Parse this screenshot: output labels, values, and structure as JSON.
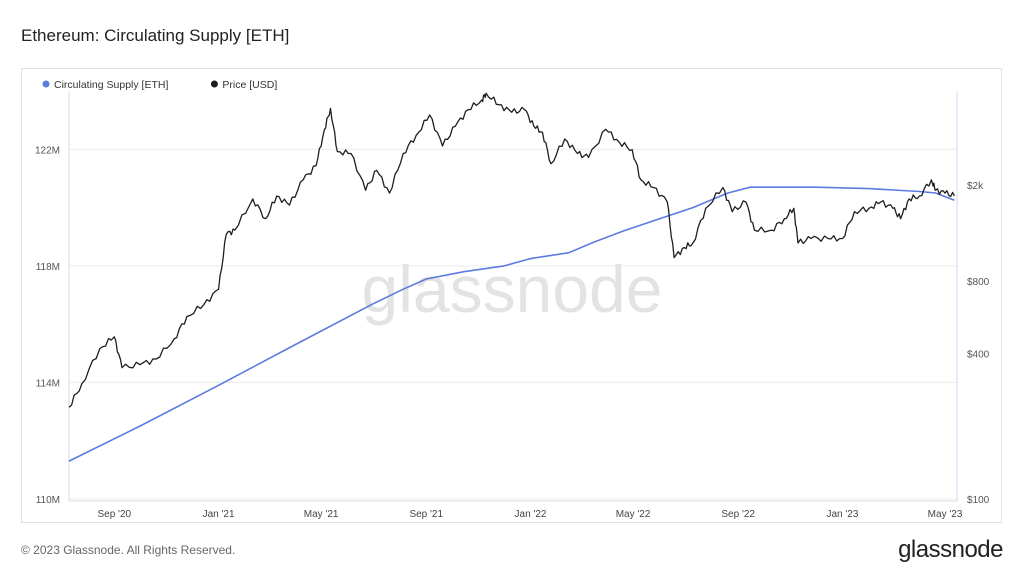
{
  "title": "Ethereum: Circulating Supply [ETH]",
  "footer": "© 2023 Glassnode. All Rights Reserved.",
  "brand": "glassnode",
  "watermark": "glassnode",
  "colors": {
    "supply": "#5b7be0",
    "price": "#1f1f1f",
    "grid": "#ececec",
    "axis": "#cfd8f0"
  },
  "chart_data": {
    "type": "line",
    "x_range": [
      "2020-07-10",
      "2023-05-15"
    ],
    "x_ticks": [
      {
        "date": "2020-09-01",
        "label": "Sep '20"
      },
      {
        "date": "2021-01-01",
        "label": "Jan '21"
      },
      {
        "date": "2021-05-01",
        "label": "May '21"
      },
      {
        "date": "2021-09-01",
        "label": "Sep '21"
      },
      {
        "date": "2022-01-01",
        "label": "Jan '22"
      },
      {
        "date": "2022-05-01",
        "label": "May '22"
      },
      {
        "date": "2022-09-01",
        "label": "Sep '22"
      },
      {
        "date": "2023-01-01",
        "label": "Jan '23"
      },
      {
        "date": "2023-05-01",
        "label": "May '23"
      }
    ],
    "left_axis": {
      "scale": "linear",
      "range": [
        110000000,
        124000000
      ],
      "ticks": [
        {
          "value": 110000000,
          "label": "110M"
        },
        {
          "value": 114000000,
          "label": "114M"
        },
        {
          "value": 118000000,
          "label": "118M"
        },
        {
          "value": 122000000,
          "label": "122M"
        }
      ]
    },
    "right_axis": {
      "scale": "log",
      "range": [
        100,
        4900
      ],
      "ticks": [
        {
          "value": 100,
          "label": "$100"
        },
        {
          "value": 400,
          "label": "$400"
        },
        {
          "value": 800,
          "label": "$800"
        },
        {
          "value": 2000,
          "label": "$2k"
        }
      ]
    },
    "legend_position": "top-left",
    "grid": "horizontal",
    "series": [
      {
        "name": "Circulating Supply [ETH]",
        "axis": "left",
        "color": "#5b7be0",
        "points": [
          [
            "2020-07-10",
            111300000
          ],
          [
            "2020-10-01",
            112500000
          ],
          [
            "2021-01-01",
            113900000
          ],
          [
            "2021-04-01",
            115300000
          ],
          [
            "2021-07-01",
            116700000
          ],
          [
            "2021-08-05",
            117200000
          ],
          [
            "2021-09-01",
            117550000
          ],
          [
            "2021-10-15",
            117800000
          ],
          [
            "2021-12-01",
            118000000
          ],
          [
            "2022-01-01",
            118250000
          ],
          [
            "2022-02-15",
            118450000
          ],
          [
            "2022-03-15",
            118800000
          ],
          [
            "2022-04-20",
            119200000
          ],
          [
            "2022-05-25",
            119550000
          ],
          [
            "2022-07-10",
            120000000
          ],
          [
            "2022-08-20",
            120500000
          ],
          [
            "2022-09-15",
            120700000
          ],
          [
            "2022-12-01",
            120700000
          ],
          [
            "2023-02-01",
            120650000
          ],
          [
            "2023-04-01",
            120550000
          ],
          [
            "2023-04-20",
            120500000
          ],
          [
            "2023-05-12",
            120250000
          ]
        ]
      },
      {
        "name": "Price [USD]",
        "axis": "right",
        "color": "#1f1f1f",
        "points": [
          [
            "2020-07-10",
            240
          ],
          [
            "2020-07-25",
            300
          ],
          [
            "2020-08-15",
            420
          ],
          [
            "2020-09-01",
            470
          ],
          [
            "2020-09-10",
            350
          ],
          [
            "2020-10-01",
            360
          ],
          [
            "2020-10-20",
            380
          ],
          [
            "2020-11-10",
            460
          ],
          [
            "2020-11-25",
            570
          ],
          [
            "2020-12-15",
            640
          ],
          [
            "2021-01-01",
            740
          ],
          [
            "2021-01-10",
            1250
          ],
          [
            "2021-01-20",
            1300
          ],
          [
            "2021-02-10",
            1750
          ],
          [
            "2021-02-25",
            1450
          ],
          [
            "2021-03-10",
            1800
          ],
          [
            "2021-03-25",
            1650
          ],
          [
            "2021-04-10",
            2100
          ],
          [
            "2021-04-25",
            2400
          ],
          [
            "2021-05-05",
            3400
          ],
          [
            "2021-05-12",
            4150
          ],
          [
            "2021-05-20",
            2750
          ],
          [
            "2021-06-05",
            2700
          ],
          [
            "2021-06-22",
            1900
          ],
          [
            "2021-07-05",
            2300
          ],
          [
            "2021-07-20",
            1850
          ],
          [
            "2021-08-05",
            2700
          ],
          [
            "2021-08-20",
            3200
          ],
          [
            "2021-09-05",
            3900
          ],
          [
            "2021-09-20",
            2900
          ],
          [
            "2021-10-05",
            3500
          ],
          [
            "2021-10-20",
            4100
          ],
          [
            "2021-11-05",
            4500
          ],
          [
            "2021-11-10",
            4800
          ],
          [
            "2021-11-25",
            4300
          ],
          [
            "2021-12-10",
            4000
          ],
          [
            "2021-12-25",
            4100
          ],
          [
            "2022-01-05",
            3500
          ],
          [
            "2022-01-15",
            3300
          ],
          [
            "2022-01-25",
            2450
          ],
          [
            "2022-02-10",
            3100
          ],
          [
            "2022-02-25",
            2700
          ],
          [
            "2022-03-10",
            2600
          ],
          [
            "2022-03-30",
            3400
          ],
          [
            "2022-04-15",
            3000
          ],
          [
            "2022-04-30",
            2800
          ],
          [
            "2022-05-10",
            2100
          ],
          [
            "2022-05-25",
            1950
          ],
          [
            "2022-06-10",
            1700
          ],
          [
            "2022-06-18",
            1000
          ],
          [
            "2022-06-30",
            1100
          ],
          [
            "2022-07-10",
            1150
          ],
          [
            "2022-07-25",
            1600
          ],
          [
            "2022-08-14",
            1950
          ],
          [
            "2022-08-25",
            1550
          ],
          [
            "2022-09-10",
            1700
          ],
          [
            "2022-09-20",
            1300
          ],
          [
            "2022-10-10",
            1300
          ],
          [
            "2022-10-25",
            1450
          ],
          [
            "2022-11-05",
            1600
          ],
          [
            "2022-11-10",
            1150
          ],
          [
            "2022-11-25",
            1200
          ],
          [
            "2022-12-15",
            1200
          ],
          [
            "2023-01-01",
            1200
          ],
          [
            "2023-01-15",
            1550
          ],
          [
            "2023-02-01",
            1600
          ],
          [
            "2023-02-15",
            1700
          ],
          [
            "2023-03-01",
            1600
          ],
          [
            "2023-03-10",
            1450
          ],
          [
            "2023-03-20",
            1750
          ],
          [
            "2023-04-01",
            1800
          ],
          [
            "2023-04-15",
            2100
          ],
          [
            "2023-04-20",
            1900
          ],
          [
            "2023-05-01",
            1850
          ],
          [
            "2023-05-12",
            1800
          ]
        ]
      }
    ]
  }
}
